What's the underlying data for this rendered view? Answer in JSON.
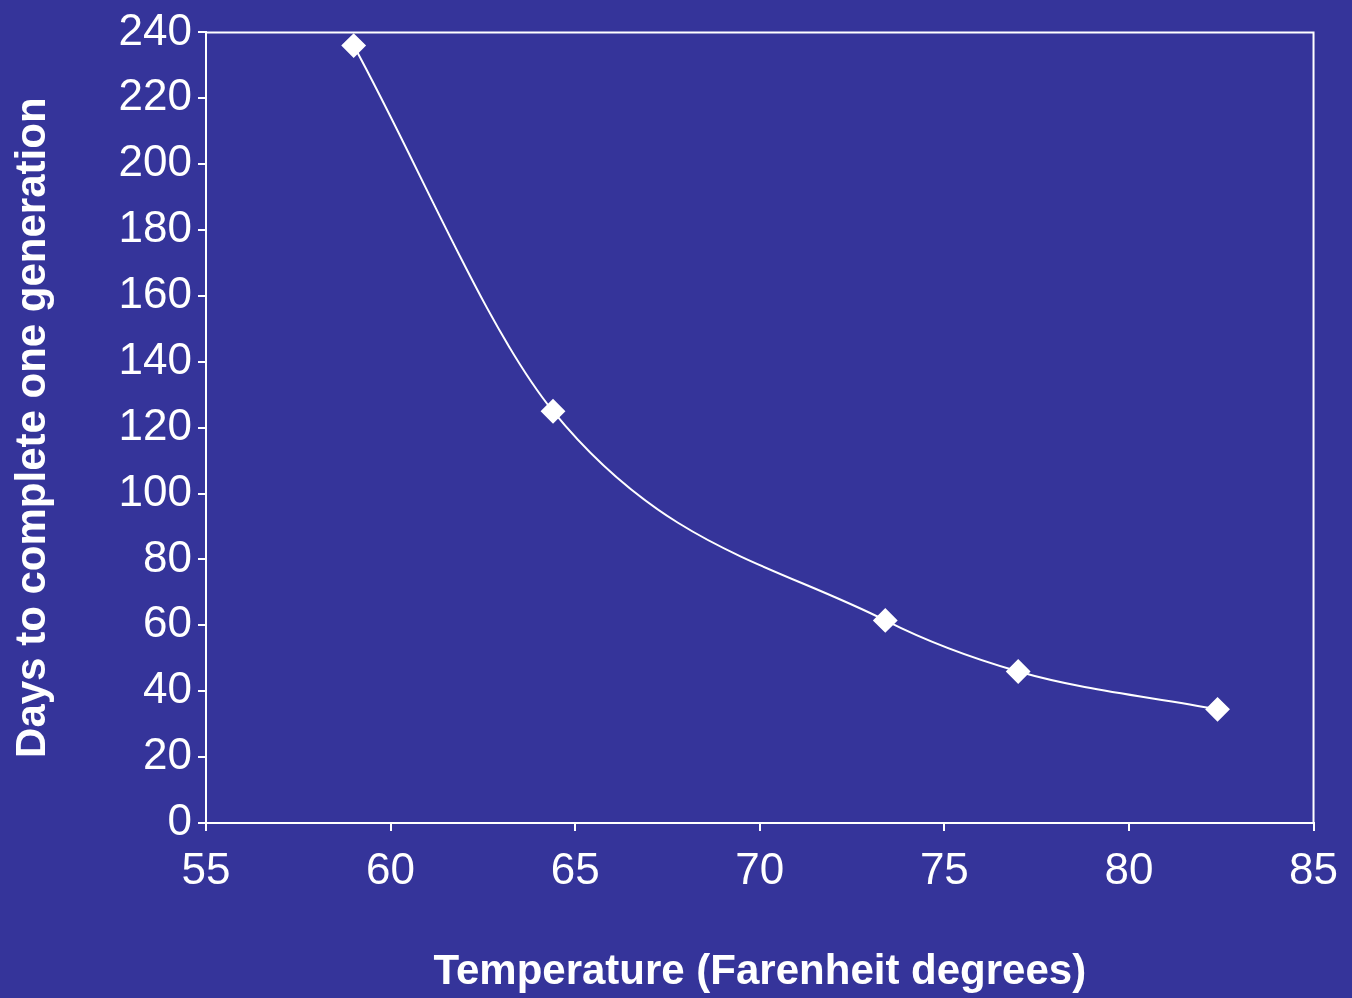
{
  "chart_data": {
    "type": "line",
    "xlabel": "Temperature (Farenheit degrees)",
    "ylabel": "Days to complete one generation",
    "x": [
      59,
      64.4,
      73.4,
      77,
      82.4
    ],
    "series": [
      {
        "color": "#ffffff",
        "values": [
          236,
          125,
          61.5,
          46,
          34.5
        ]
      }
    ],
    "xlim": [
      55,
      85
    ],
    "xticks": [
      55,
      60,
      65,
      70,
      75,
      80,
      85
    ],
    "ylim": [
      0,
      240
    ],
    "yticks": [
      0,
      20,
      40,
      60,
      80,
      100,
      120,
      140,
      160,
      180,
      200,
      220,
      240
    ],
    "grid": false,
    "legend": false,
    "marker": "diamond",
    "line_style": "solid"
  }
}
